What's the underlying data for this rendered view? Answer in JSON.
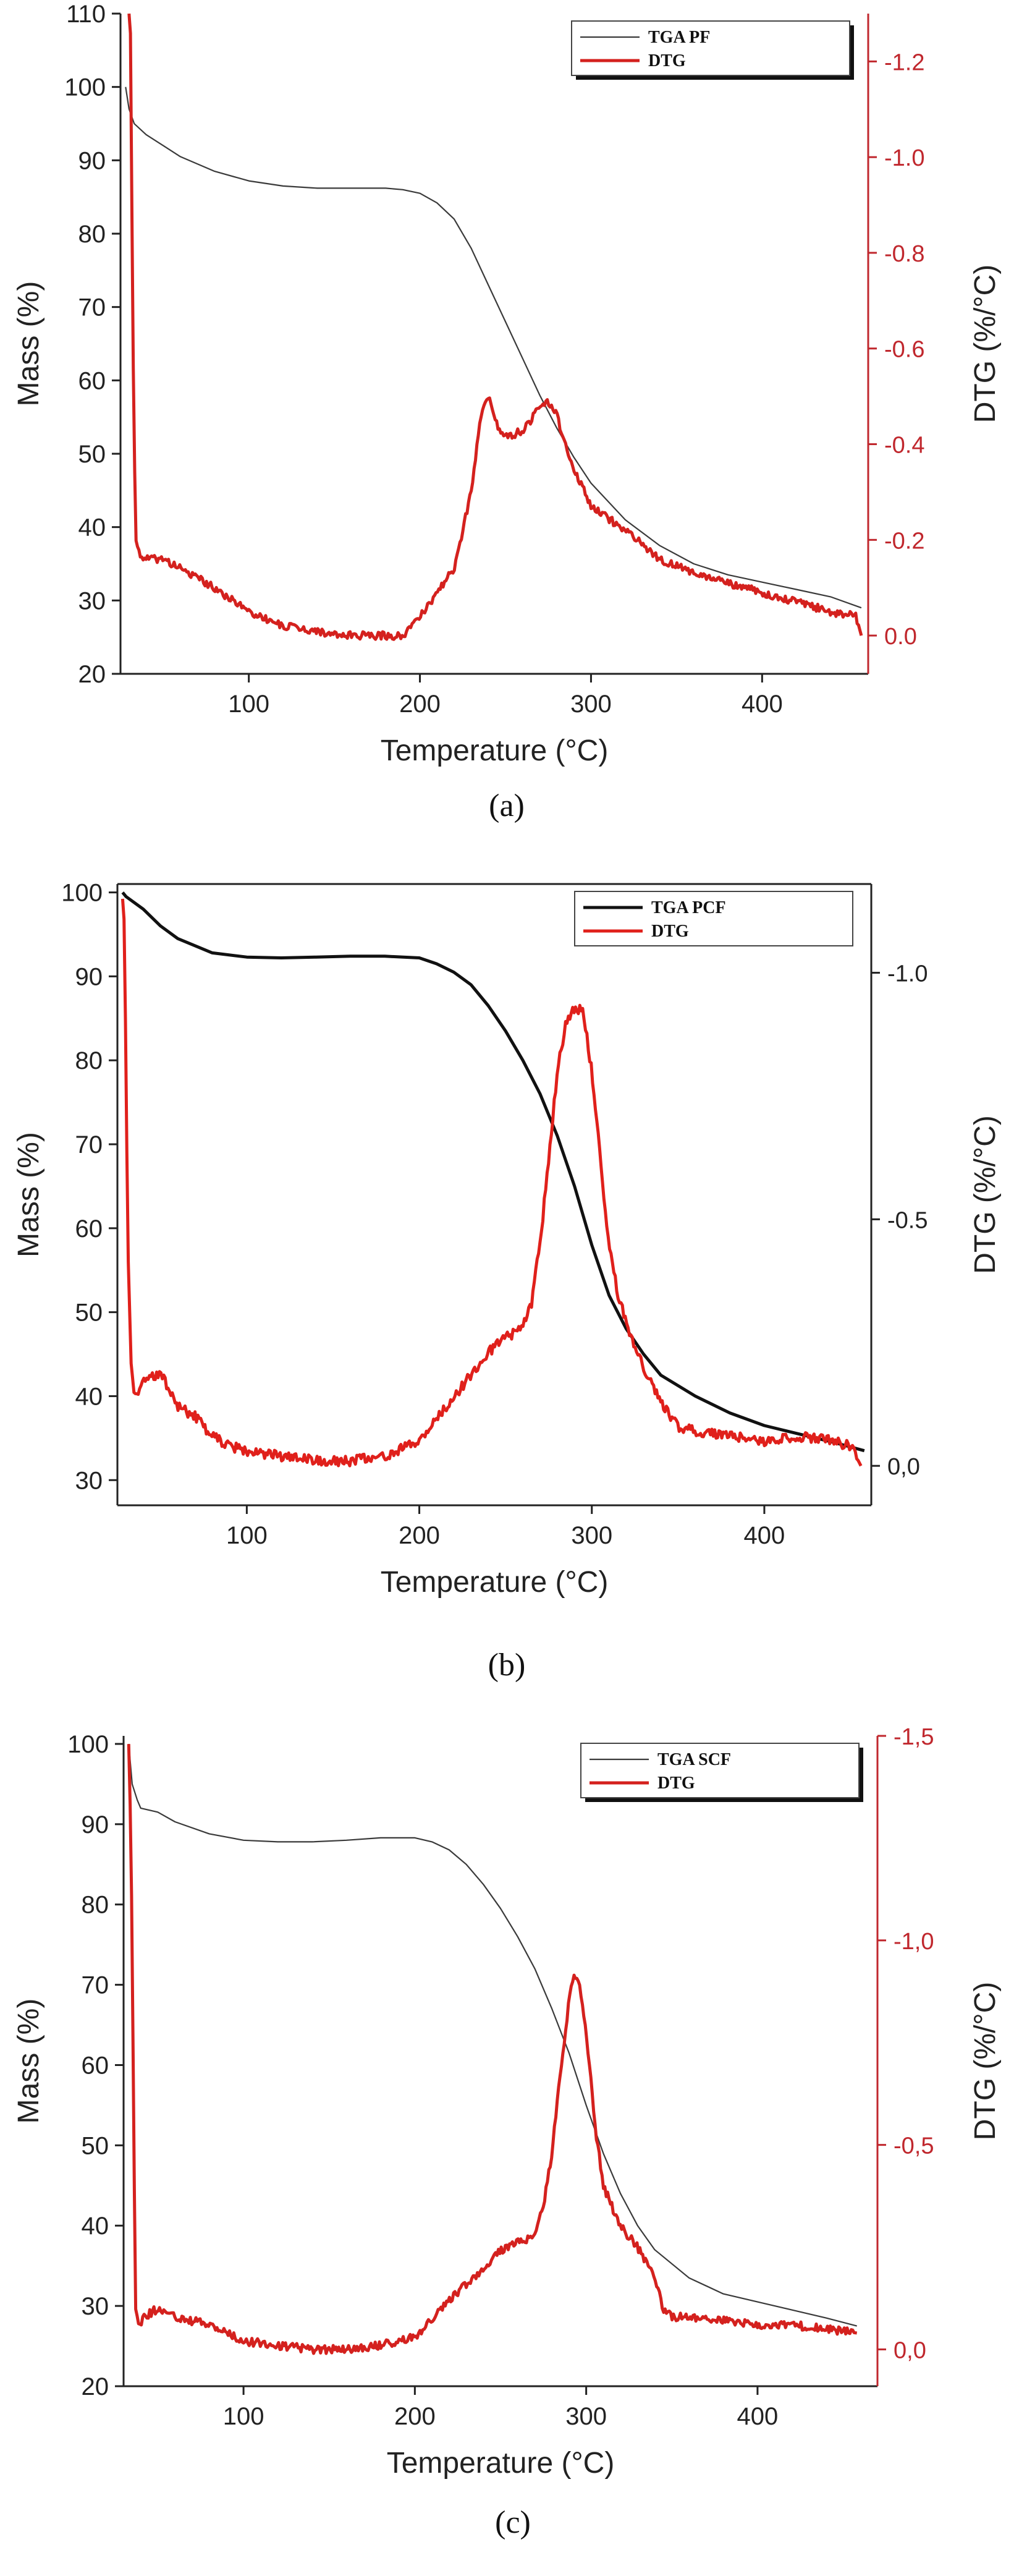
{
  "figure": {
    "panel_labels": [
      "(a)",
      "(b)",
      "(c)"
    ]
  },
  "chart_data": [
    {
      "type": "line",
      "panel_label": "(a)",
      "xlabel": "Temperature (°C)",
      "ylabel": "Mass (%)",
      "y2label": "DTG (%/°C)",
      "xlim": [
        25,
        462
      ],
      "ylim": [
        20,
        110
      ],
      "y2lim": [
        0.08,
        -1.3
      ],
      "xticks": [
        100,
        200,
        300,
        400
      ],
      "xtick_labels": [
        "100",
        "200",
        "300",
        "400"
      ],
      "yticks": [
        20,
        30,
        40,
        50,
        60,
        70,
        80,
        90,
        100,
        110
      ],
      "ytick_labels": [
        "20",
        "30",
        "40",
        "50",
        "60",
        "70",
        "80",
        "90",
        "100",
        "110"
      ],
      "y2ticks": [
        0.0,
        -0.2,
        -0.4,
        -0.6,
        -0.8,
        -1.0,
        -1.2
      ],
      "y2tick_labels": [
        "0.0",
        "-0.2",
        "-0.4",
        "-0.6",
        "-0.8",
        "-1.0",
        "-1.2"
      ],
      "legend": {
        "placement": "top-right",
        "boxed": true,
        "shadow": true
      },
      "right_axis_color": "#c0272d",
      "series": [
        {
          "name": "TGA PF",
          "axis": "left",
          "color": "#3a3a3a",
          "weight": "thin",
          "x": [
            28,
            30,
            33,
            40,
            50,
            60,
            70,
            80,
            100,
            120,
            140,
            160,
            180,
            190,
            200,
            210,
            220,
            230,
            240,
            250,
            260,
            270,
            280,
            290,
            300,
            320,
            340,
            360,
            380,
            400,
            420,
            440,
            458
          ],
          "y": [
            100,
            97,
            95,
            93.5,
            92,
            90.5,
            89.5,
            88.5,
            87.2,
            86.5,
            86.2,
            86.2,
            86.2,
            86,
            85.5,
            84.2,
            82,
            78,
            73,
            68,
            63,
            58,
            53.5,
            49.5,
            46,
            41,
            37.5,
            35,
            33.5,
            32.5,
            31.5,
            30.5,
            29
          ]
        },
        {
          "name": "DTG",
          "axis": "right",
          "color": "#d4211e",
          "weight": "thick",
          "noise": 0.008,
          "x": [
            30,
            31,
            32,
            33,
            34,
            36,
            40,
            50,
            60,
            80,
            100,
            120,
            140,
            150,
            160,
            170,
            180,
            190,
            200,
            210,
            220,
            230,
            236,
            240,
            245,
            250,
            255,
            260,
            265,
            270,
            275,
            280,
            285,
            290,
            300,
            320,
            340,
            360,
            380,
            400,
            420,
            440,
            455,
            458
          ],
          "y": [
            -1.3,
            -1.25,
            -0.7,
            -0.4,
            -0.2,
            -0.17,
            -0.16,
            -0.16,
            -0.14,
            -0.1,
            -0.05,
            -0.02,
            -0.01,
            0.0,
            0.0,
            0.0,
            0.0,
            0.0,
            -0.04,
            -0.09,
            -0.14,
            -0.3,
            -0.47,
            -0.5,
            -0.44,
            -0.42,
            -0.42,
            -0.43,
            -0.45,
            -0.48,
            -0.49,
            -0.46,
            -0.4,
            -0.35,
            -0.27,
            -0.22,
            -0.16,
            -0.13,
            -0.11,
            -0.09,
            -0.07,
            -0.05,
            -0.04,
            0.0
          ]
        }
      ]
    },
    {
      "type": "line",
      "panel_label": "(b)",
      "xlabel": "Temperature (°C)",
      "ylabel": "Mass (%)",
      "y2label": "DTG (%/°C)",
      "xlim": [
        25,
        462
      ],
      "ylim": [
        27,
        101
      ],
      "y2lim": [
        0.08,
        -1.18
      ],
      "xticks": [
        100,
        200,
        300,
        400
      ],
      "xtick_labels": [
        "100",
        "200",
        "300",
        "400"
      ],
      "yticks": [
        30,
        40,
        50,
        60,
        70,
        80,
        90,
        100
      ],
      "ytick_labels": [
        "30",
        "40",
        "50",
        "60",
        "70",
        "80",
        "90",
        "100"
      ],
      "y2ticks": [
        0.0,
        -0.5,
        -1.0
      ],
      "y2tick_labels": [
        "0,0",
        "-0.5",
        "-1.0"
      ],
      "legend": {
        "placement": "top-right",
        "boxed": true,
        "shadow": false
      },
      "right_axis_color": "#222222",
      "series": [
        {
          "name": "TGA PCF",
          "axis": "left",
          "color": "#111111",
          "weight": "thick",
          "x": [
            28,
            30,
            40,
            50,
            60,
            80,
            100,
            120,
            140,
            160,
            180,
            200,
            210,
            220,
            230,
            240,
            250,
            260,
            270,
            280,
            290,
            300,
            310,
            320,
            330,
            340,
            360,
            380,
            400,
            420,
            440,
            458
          ],
          "y": [
            100,
            99.5,
            98,
            96,
            94.5,
            92.8,
            92.3,
            92.2,
            92.3,
            92.4,
            92.4,
            92.2,
            91.5,
            90.5,
            89,
            86.5,
            83.5,
            80,
            76,
            71,
            65,
            58,
            52,
            48,
            45,
            42.5,
            40,
            38,
            36.5,
            35.5,
            34.5,
            33.5
          ]
        },
        {
          "name": "DTG",
          "axis": "right",
          "color": "#e0201b",
          "weight": "thick",
          "noise": 0.01,
          "x": [
            28,
            29,
            30,
            31,
            33,
            35,
            40,
            50,
            60,
            70,
            80,
            90,
            100,
            120,
            140,
            160,
            180,
            200,
            220,
            240,
            250,
            260,
            265,
            270,
            275,
            280,
            285,
            290,
            295,
            300,
            305,
            310,
            315,
            320,
            330,
            340,
            350,
            360,
            380,
            400,
            420,
            440,
            450,
            456
          ],
          "y": [
            -1.15,
            -1.1,
            -0.8,
            -0.45,
            -0.2,
            -0.14,
            -0.17,
            -0.19,
            -0.12,
            -0.1,
            -0.06,
            -0.04,
            -0.03,
            -0.02,
            -0.01,
            -0.01,
            -0.02,
            -0.05,
            -0.14,
            -0.23,
            -0.26,
            -0.28,
            -0.33,
            -0.45,
            -0.62,
            -0.8,
            -0.9,
            -0.93,
            -0.92,
            -0.8,
            -0.62,
            -0.45,
            -0.35,
            -0.29,
            -0.2,
            -0.13,
            -0.08,
            -0.07,
            -0.06,
            -0.05,
            -0.06,
            -0.05,
            -0.04,
            0.0
          ]
        }
      ]
    },
    {
      "type": "line",
      "panel_label": "(c)",
      "xlabel": "Temperature (°C)",
      "ylabel": "Mass (%)",
      "y2label": "DTG (%/°C)",
      "xlim": [
        30,
        470
      ],
      "ylim": [
        20,
        101
      ],
      "y2lim": [
        0.09,
        -1.5
      ],
      "xticks": [
        100,
        200,
        300,
        400
      ],
      "xtick_labels": [
        "100",
        "200",
        "300",
        "400"
      ],
      "yticks": [
        20,
        30,
        40,
        50,
        60,
        70,
        80,
        90,
        100
      ],
      "ytick_labels": [
        "20",
        "30",
        "40",
        "50",
        "60",
        "70",
        "80",
        "90",
        "100"
      ],
      "y2ticks": [
        0.0,
        -0.5,
        -1.0,
        -1.5
      ],
      "y2tick_labels": [
        "0,0",
        "-0,5",
        "-1,0",
        "-1,5"
      ],
      "legend": {
        "placement": "top-right",
        "boxed": true,
        "shadow": true
      },
      "right_axis_color": "#c0272d",
      "series": [
        {
          "name": "TGA SCF",
          "axis": "left",
          "color": "#3a3a3a",
          "weight": "thin",
          "x": [
            33,
            35,
            38,
            40,
            50,
            60,
            80,
            100,
            120,
            140,
            160,
            180,
            200,
            210,
            220,
            230,
            240,
            250,
            260,
            270,
            280,
            290,
            300,
            310,
            320,
            330,
            340,
            360,
            380,
            400,
            420,
            440,
            458
          ],
          "y": [
            100,
            95,
            93,
            92,
            91.5,
            90.3,
            88.8,
            88,
            87.8,
            87.8,
            88,
            88.3,
            88.3,
            87.8,
            86.8,
            85,
            82.5,
            79.5,
            76,
            72,
            67,
            61.5,
            55,
            49,
            44,
            40,
            37,
            33.5,
            31.5,
            30.5,
            29.5,
            28.5,
            27.5
          ]
        },
        {
          "name": "DTG",
          "axis": "right",
          "color": "#d4211e",
          "weight": "thick",
          "noise": 0.01,
          "x": [
            33,
            34,
            35,
            36,
            37,
            39,
            42,
            50,
            60,
            80,
            100,
            120,
            140,
            160,
            180,
            200,
            220,
            240,
            250,
            260,
            270,
            275,
            280,
            285,
            290,
            293,
            296,
            300,
            305,
            310,
            315,
            320,
            330,
            340,
            345,
            350,
            360,
            380,
            400,
            420,
            440,
            458
          ],
          "y": [
            -1.48,
            -1.3,
            -1.0,
            -0.5,
            -0.1,
            -0.06,
            -0.08,
            -0.1,
            -0.08,
            -0.06,
            -0.02,
            -0.01,
            0.0,
            0.0,
            -0.01,
            -0.03,
            -0.12,
            -0.2,
            -0.24,
            -0.26,
            -0.28,
            -0.35,
            -0.48,
            -0.68,
            -0.85,
            -0.92,
            -0.9,
            -0.78,
            -0.55,
            -0.4,
            -0.35,
            -0.3,
            -0.25,
            -0.18,
            -0.1,
            -0.08,
            -0.08,
            -0.07,
            -0.06,
            -0.06,
            -0.05,
            -0.04
          ]
        }
      ]
    }
  ]
}
